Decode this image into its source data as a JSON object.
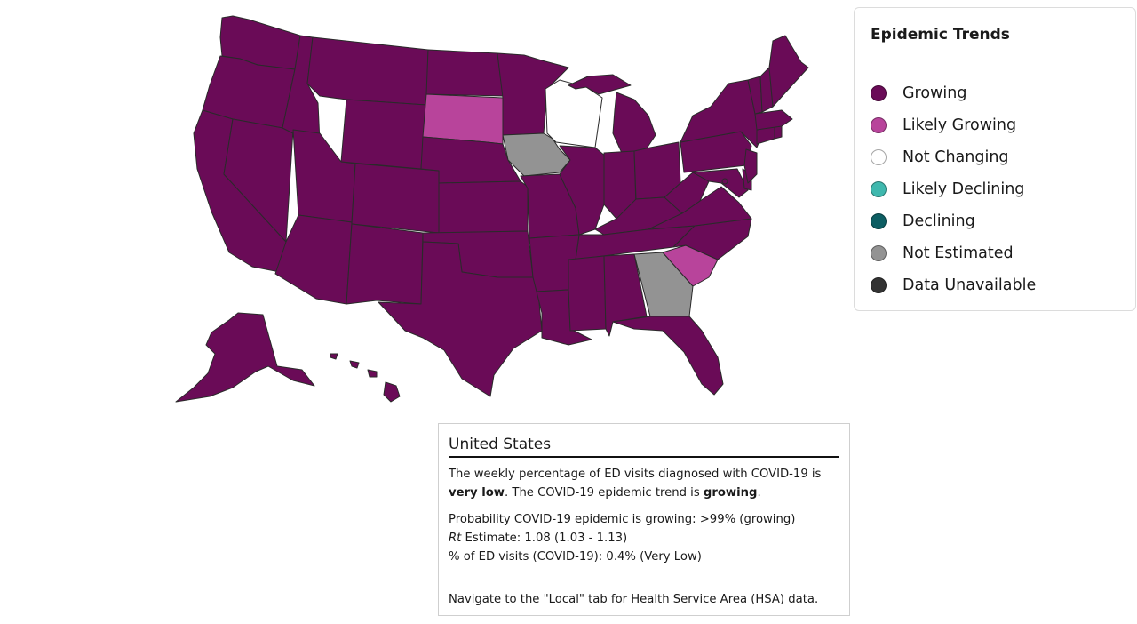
{
  "legend": {
    "title": "Epidemic Trends",
    "items": [
      {
        "id": "growing",
        "label": "Growing",
        "color": "#6a0b57"
      },
      {
        "id": "likely_growing",
        "label": "Likely Growing",
        "color": "#b8449b"
      },
      {
        "id": "not_changing",
        "label": "Not Changing",
        "color": "#ffffff"
      },
      {
        "id": "likely_declining",
        "label": "Likely Declining",
        "color": "#3fb8ae"
      },
      {
        "id": "declining",
        "label": "Declining",
        "color": "#0d5e63"
      },
      {
        "id": "not_estimated",
        "label": "Not Estimated",
        "color": "#939393"
      },
      {
        "id": "data_unavailable",
        "label": "Data Unavailable",
        "color": "#333333"
      }
    ]
  },
  "map": {
    "states": {
      "SD": "likely_growing",
      "SC": "likely_growing",
      "IA": "not_estimated",
      "GA": "not_estimated",
      "WI": "not_changing"
    },
    "default_status": "growing"
  },
  "info": {
    "title": "United States",
    "s1_a": "The weekly percentage of ED visits diagnosed with COVID-19 is ",
    "s1_b": "very low",
    "s1_c": ". The COVID-19 epidemic trend is ",
    "s1_d": "growing",
    "s1_e": ".",
    "prob": "Probability COVID-19 epidemic is growing: >99% (growing)",
    "rt_label": "Rt",
    "rt_text": " Estimate: 1.08 (1.03 - 1.13)",
    "ed": "% of ED visits (COVID-19): 0.4% (Very Low)",
    "nav": "Navigate to the \"Local\" tab for Health Service Area (HSA) data."
  }
}
